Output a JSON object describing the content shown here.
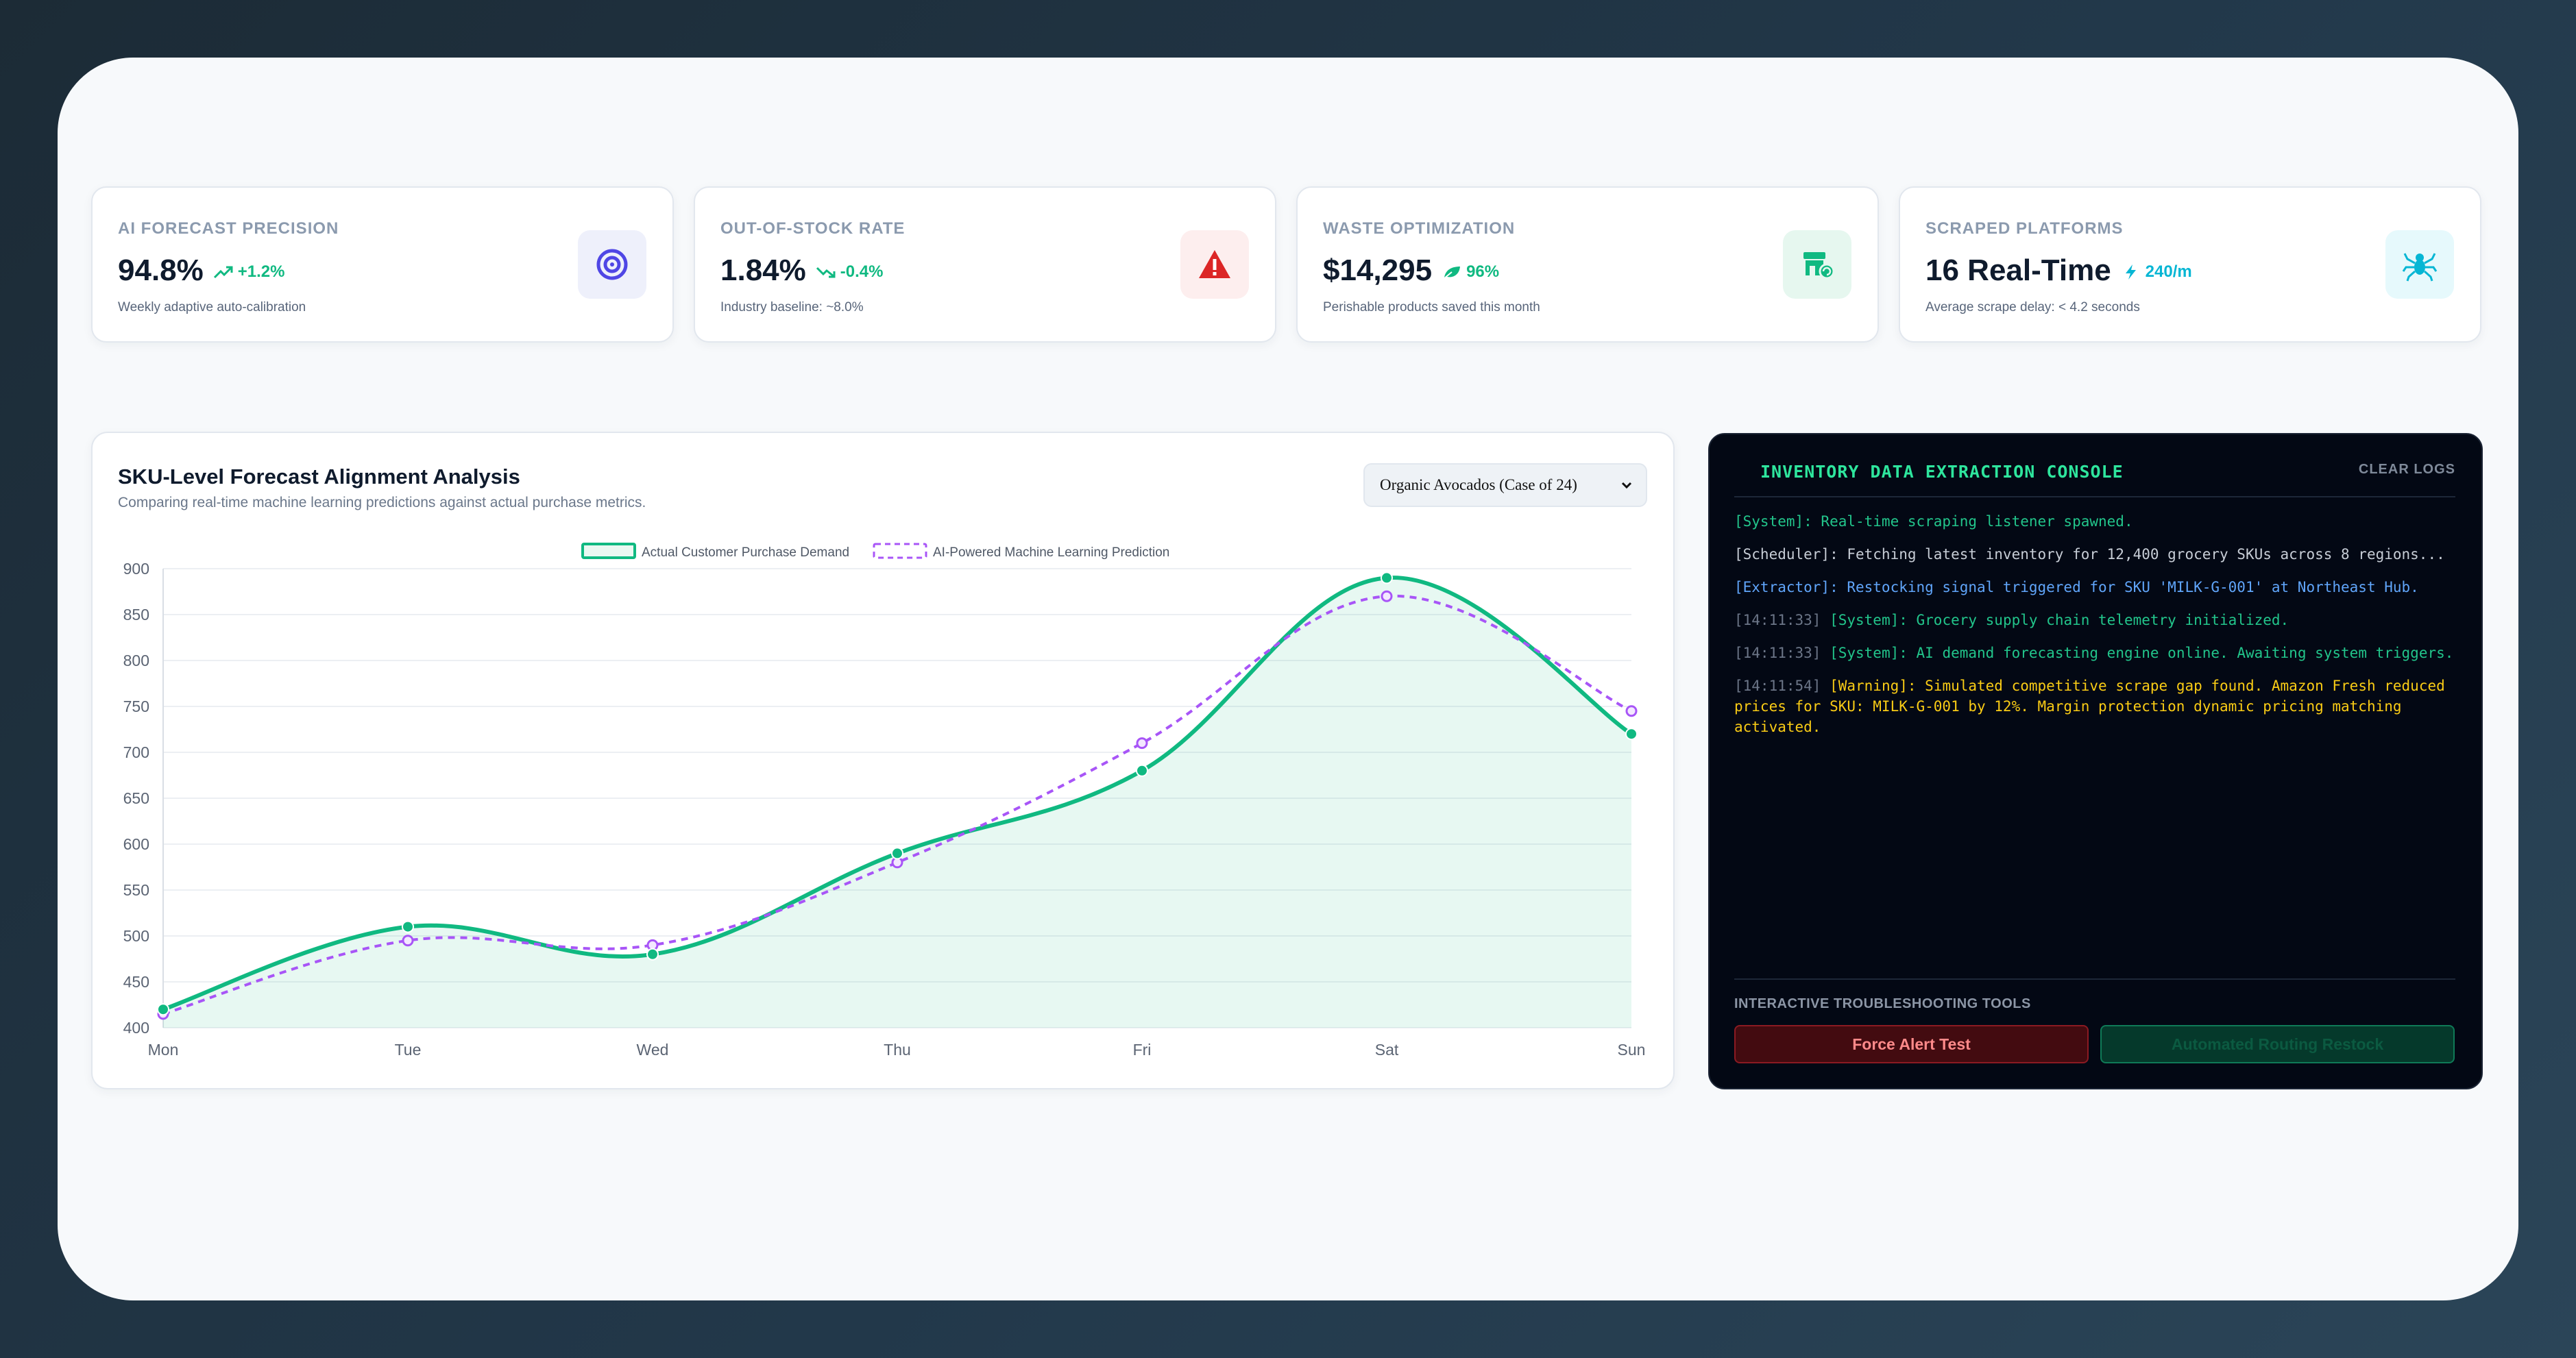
{
  "kpis": [
    {
      "label": "AI FORECAST PRECISION",
      "value": "94.8%",
      "delta": "+1.2%",
      "sub": "Weekly adaptive auto-calibration",
      "icon": "target-icon",
      "icon_bg": "#eef0fb",
      "icon_color": "#4f46e5"
    },
    {
      "label": "OUT-OF-STOCK RATE",
      "value": "1.84%",
      "delta": "-0.4%",
      "sub": "Industry baseline: ~8.0%",
      "icon": "warning-icon",
      "icon_bg": "#fdeeee",
      "icon_color": "#dc2626"
    },
    {
      "label": "WASTE OPTIMIZATION",
      "value": "$14,295",
      "delta": "96%",
      "sub": "Perishable products saved this month",
      "icon": "store-recycle-icon",
      "icon_bg": "#e6f7ef",
      "icon_color": "#10b981"
    },
    {
      "label": "SCRAPED PLATFORMS",
      "value": "16 Real-Time",
      "delta": "240/m",
      "sub": "Average scrape delay: < 4.2 seconds",
      "icon": "spider-icon",
      "icon_bg": "#e6f9fc",
      "icon_color": "#06b6d4"
    }
  ],
  "chart_panel": {
    "title": "SKU-Level Forecast Alignment Analysis",
    "subtitle": "Comparing real-time machine learning predictions against actual purchase metrics.",
    "selected_sku": "Organic Avocados (Case of 24)"
  },
  "chart_data": {
    "type": "line",
    "categories": [
      "Mon",
      "Tue",
      "Wed",
      "Thu",
      "Fri",
      "Sat",
      "Sun"
    ],
    "ylim": [
      400,
      900
    ],
    "yticks": [
      400,
      450,
      500,
      550,
      600,
      650,
      700,
      750,
      800,
      850,
      900
    ],
    "legend_position": "top-center",
    "grid": true,
    "series": [
      {
        "name": "Actual Customer Purchase Demand",
        "values": [
          420,
          510,
          480,
          590,
          680,
          890,
          720
        ],
        "color": "#10b981",
        "style": "solid",
        "fill": true
      },
      {
        "name": "AI-Powered Machine Learning Prediction",
        "values": [
          415,
          495,
          490,
          580,
          710,
          870,
          745
        ],
        "color": "#a855f7",
        "style": "dashed",
        "fill": false
      }
    ]
  },
  "console": {
    "title": "INVENTORY DATA EXTRACTION CONSOLE",
    "clear_label": "CLEAR LOGS",
    "logs": [
      {
        "ts": "",
        "text": "[System]: Real-time scraping listener spawned.",
        "color": "#22c58b"
      },
      {
        "ts": "",
        "text": "[Scheduler]: Fetching latest inventory for 12,400 grocery SKUs across 8 regions...",
        "color": "#c7cdd6"
      },
      {
        "ts": "",
        "text": "[Extractor]: Restocking signal triggered for SKU 'MILK-G-001' at Northeast Hub.",
        "color": "#60a5fa"
      },
      {
        "ts": "[14:11:33]",
        "text": "[System]: Grocery supply chain telemetry initialized.",
        "color": "#22c58b"
      },
      {
        "ts": "[14:11:33]",
        "text": "[System]: AI demand forecasting engine online. Awaiting system triggers.",
        "color": "#22c58b"
      },
      {
        "ts": "[14:11:54]",
        "text": "[Warning]: Simulated competitive scrape gap found. Amazon Fresh reduced prices for SKU: MILK-G-001 by 12%. Margin protection dynamic pricing matching activated.",
        "color": "#facc15"
      }
    ],
    "tools_label": "INTERACTIVE TROUBLESHOOTING TOOLS",
    "force_alert_label": "Force Alert Test",
    "restock_label": "Automated Routing Restock"
  }
}
